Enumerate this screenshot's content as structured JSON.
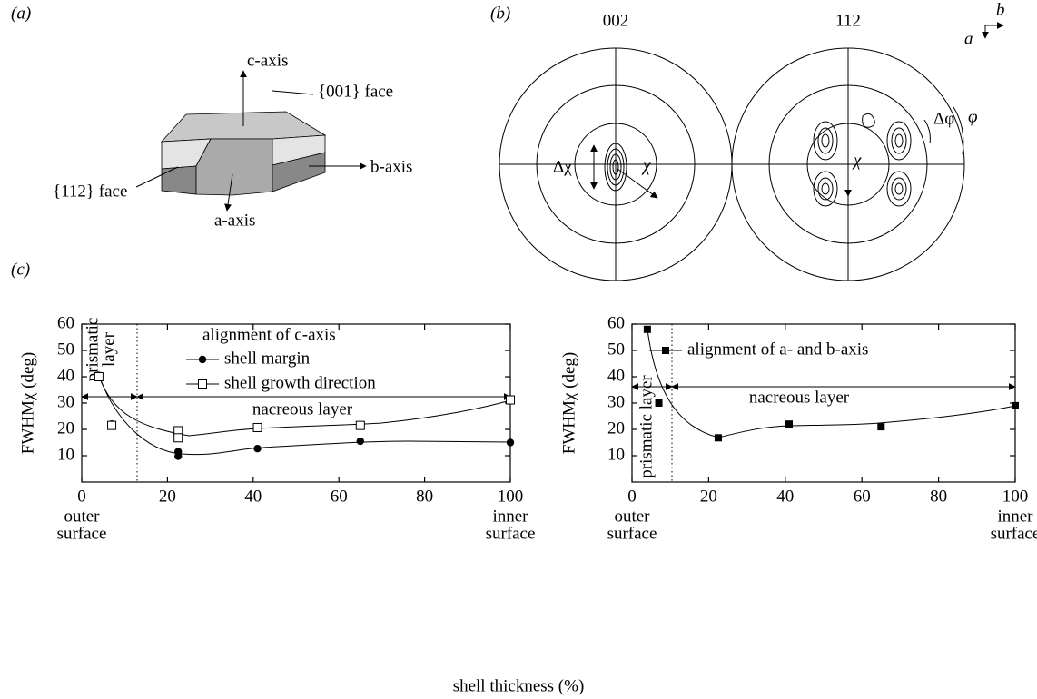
{
  "panel_labels": [
    "(a)",
    "(b)",
    "(c)"
  ],
  "crystal": {
    "c_axis": "c-axis",
    "b_axis": "b-axis",
    "a_axis": "a-axis",
    "face_001": "{001} face",
    "face_112": "{112} face"
  },
  "pole_figures": {
    "titles": [
      "002",
      "112"
    ],
    "delta_chi": "Δχ",
    "chi": [
      "χ",
      "χ"
    ],
    "delta_phi": "Δφ",
    "phi": "φ",
    "axis_a": "a",
    "axis_b": "b"
  },
  "x_label": "shell thickness (%)",
  "chart_data": [
    {
      "type": "scatter",
      "ylabel": "FWHMχ (deg)",
      "legend_title": "alignment of c-axis",
      "xlim": [
        0,
        100
      ],
      "ylim": [
        0,
        60
      ],
      "xticks": [
        0,
        20,
        40,
        60,
        80,
        100
      ],
      "yticks": [
        10,
        20,
        30,
        40,
        50,
        60
      ],
      "x_end_labels": [
        [
          "outer",
          "surface"
        ],
        [
          "inner",
          "surface"
        ]
      ],
      "annotations": {
        "prismatic": [
          "prismatic",
          "layer"
        ],
        "nacreous": "nacreous layer"
      },
      "series": [
        {
          "name": "shell margin",
          "color": "#000000",
          "marker": "circle",
          "x": [
            4,
            7,
            22.5,
            22.5,
            41,
            65,
            100
          ],
          "values": [
            40.5,
            22,
            11.5,
            9.8,
            12.7,
            15.5,
            15
          ]
        },
        {
          "name": "shell growth direction",
          "color": "#000000",
          "marker": "open-square",
          "x": [
            4,
            7,
            22.5,
            22.5,
            41,
            65,
            100
          ],
          "values": [
            40,
            21.5,
            19.5,
            16.8,
            20.7,
            21.5,
            31.2
          ]
        }
      ]
    },
    {
      "type": "scatter",
      "ylabel": "FWHMχ (deg)",
      "xlim": [
        0,
        100
      ],
      "ylim": [
        0,
        60
      ],
      "xticks": [
        0,
        20,
        40,
        60,
        80,
        100
      ],
      "yticks": [
        10,
        20,
        30,
        40,
        50,
        60
      ],
      "x_end_labels": [
        [
          "outer",
          "surface"
        ],
        [
          "inner",
          "surface"
        ]
      ],
      "annotations": {
        "prismatic": "prismatic layer",
        "nacreous": "nacreous layer"
      },
      "series": [
        {
          "name": "alignment of a- and b-axis",
          "color": "#000000",
          "marker": "square",
          "x": [
            4,
            7,
            22.5,
            41,
            65,
            100
          ],
          "values": [
            58,
            30,
            16.8,
            22,
            21,
            29
          ]
        }
      ]
    }
  ]
}
